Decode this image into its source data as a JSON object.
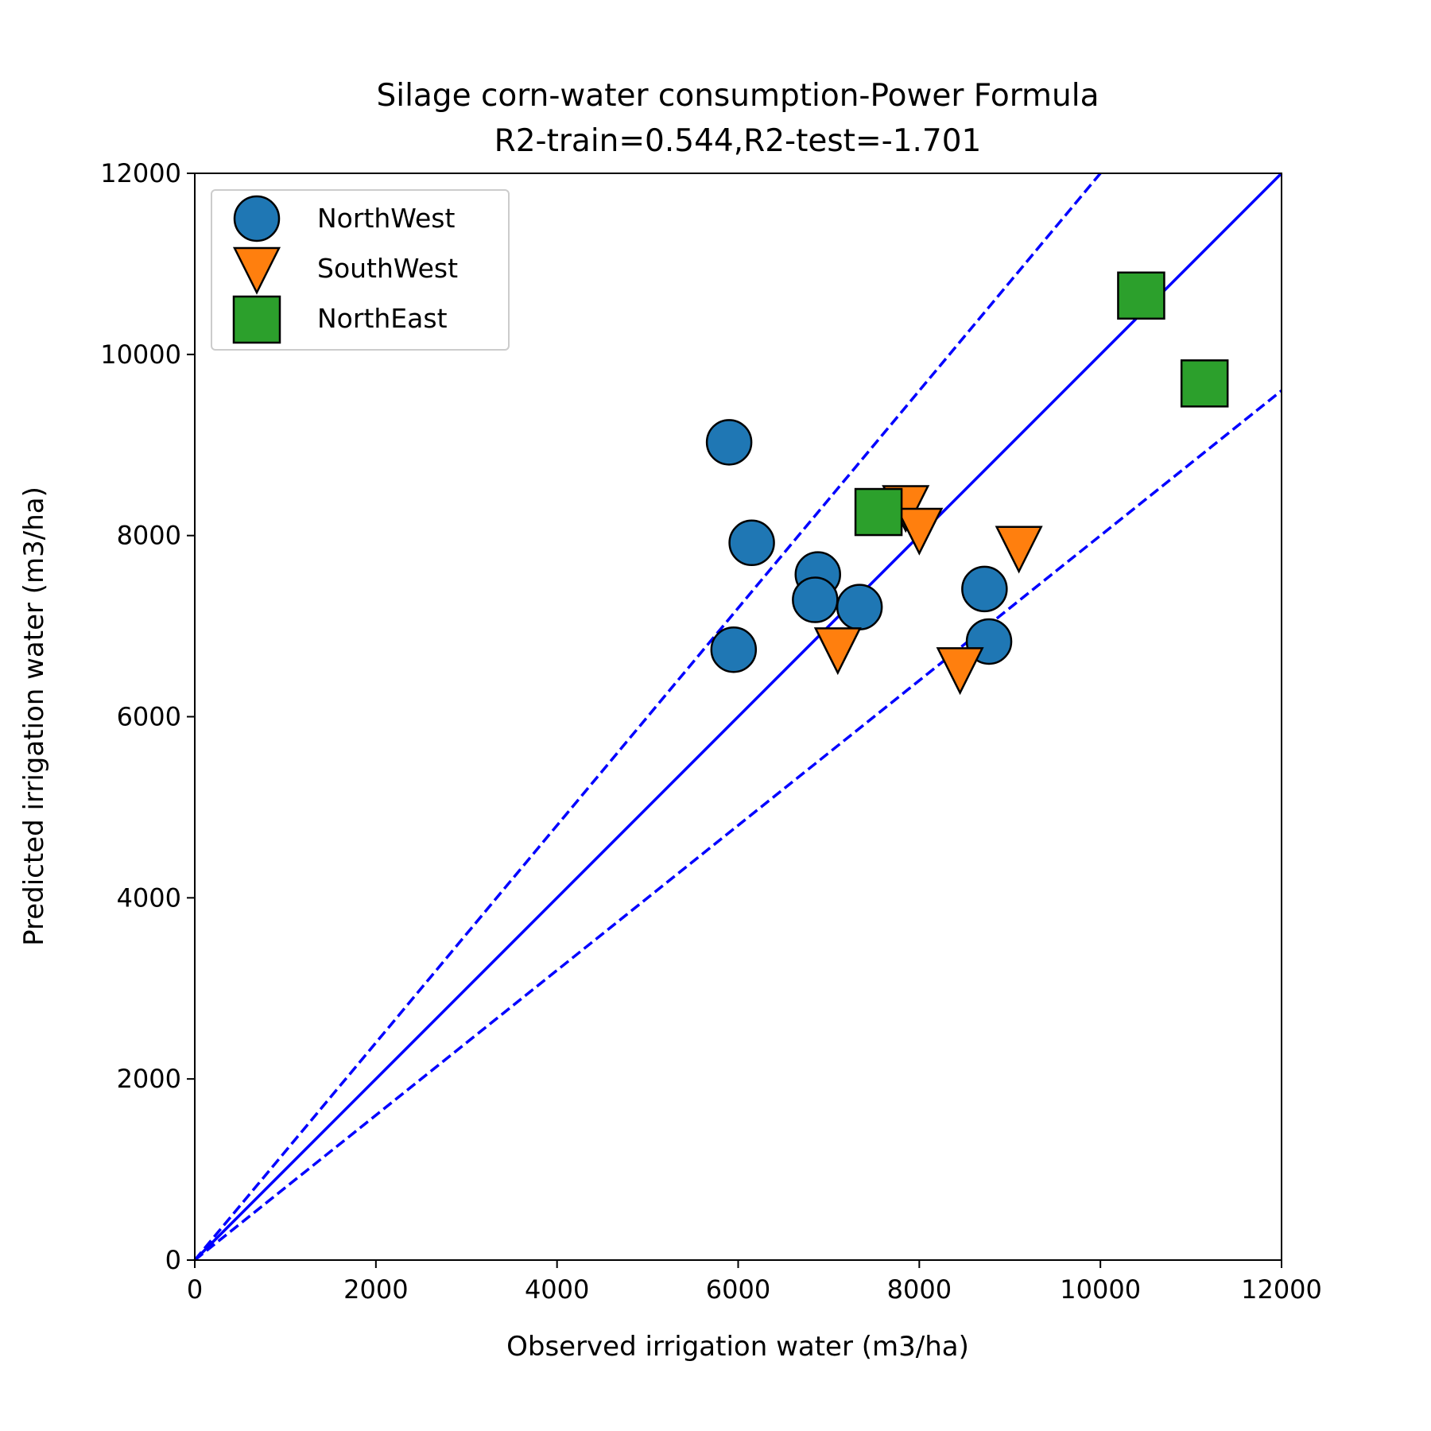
{
  "chart_data": {
    "type": "scatter",
    "title": "Silage corn-water consumption-Power Formula",
    "subtitle": "R2-train=0.544,R2-test=-1.701",
    "xlabel": "Observed irrigation water (m3/ha)",
    "ylabel": "Predicted irrigation water (m3/ha)",
    "xlim": [
      0,
      12000
    ],
    "ylim": [
      0,
      12000
    ],
    "xticks": [
      "0",
      "2000",
      "4000",
      "6000",
      "8000",
      "10000",
      "12000"
    ],
    "yticks": [
      "0",
      "2000",
      "4000",
      "6000",
      "8000",
      "10000",
      "12000"
    ],
    "grid": false,
    "legend_position": "top-left",
    "reference_lines": [
      {
        "slope": 1.0,
        "style": "solid",
        "color": "#0000ff"
      },
      {
        "slope": 1.2,
        "style": "dashed",
        "color": "#0000ff"
      },
      {
        "slope": 0.8,
        "style": "dashed",
        "color": "#0000ff"
      }
    ],
    "series": [
      {
        "name": "NorthWest",
        "marker": "circle",
        "color": "#1f77b4",
        "points": [
          [
            5900,
            9030
          ],
          [
            6150,
            7920
          ],
          [
            6880,
            7570
          ],
          [
            6850,
            7290
          ],
          [
            7340,
            7210
          ],
          [
            5950,
            6740
          ],
          [
            8720,
            7410
          ],
          [
            8770,
            6830
          ]
        ]
      },
      {
        "name": "SouthWest",
        "marker": "triangle-down",
        "color": "#ff7f0e",
        "points": [
          [
            7850,
            8300
          ],
          [
            8000,
            8050
          ],
          [
            7100,
            6730
          ],
          [
            8450,
            6510
          ],
          [
            9100,
            7850
          ]
        ]
      },
      {
        "name": "NorthEast",
        "marker": "square",
        "color": "#2ca02c",
        "points": [
          [
            10450,
            10650
          ],
          [
            11150,
            9680
          ],
          [
            7550,
            8260
          ]
        ]
      }
    ]
  }
}
